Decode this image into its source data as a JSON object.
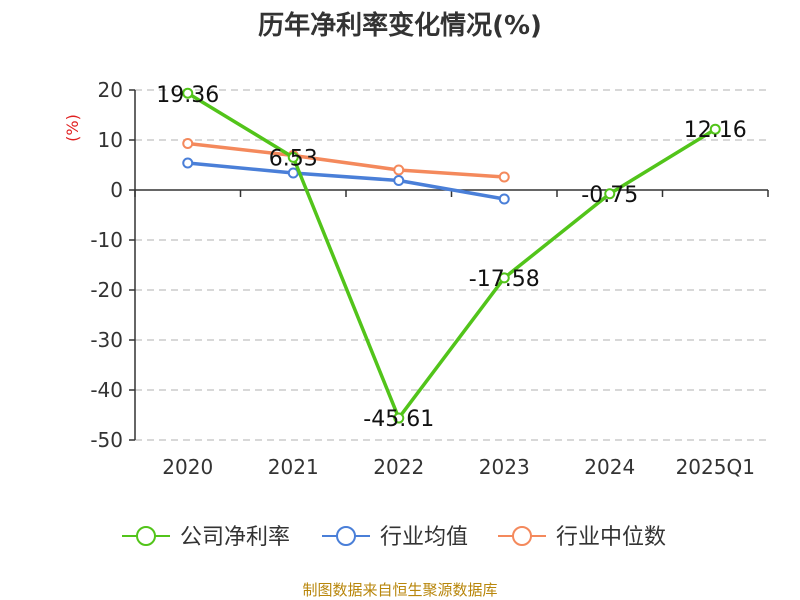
{
  "chart_data": {
    "type": "line",
    "title": "历年净利率变化情况(%)",
    "ylabel": "(%)",
    "xlabel": "",
    "categories": [
      "2020",
      "2021",
      "2022",
      "2023",
      "2024",
      "2025Q1"
    ],
    "ylim": [
      -50,
      20
    ],
    "yticks": [
      20,
      10,
      0,
      -10,
      -20,
      -30,
      -40,
      -50
    ],
    "grid": true,
    "legend_position": "bottom",
    "series": [
      {
        "name": "公司净利率",
        "color": "#52c41a",
        "values": [
          19.36,
          6.53,
          -45.61,
          -17.58,
          -0.75,
          12.16
        ],
        "labels": [
          "19.36",
          "6.53",
          "-45.61",
          "-17.58",
          "-0.75",
          "12.16"
        ]
      },
      {
        "name": "行业均值",
        "color": "#4a7fd8",
        "values": [
          5.4,
          3.4,
          1.9,
          -1.8,
          null,
          null
        ]
      },
      {
        "name": "行业中位数",
        "color": "#f4895c",
        "values": [
          9.3,
          6.9,
          4.0,
          2.6,
          null,
          null
        ]
      }
    ]
  },
  "source": "制图数据来自恒生聚源数据库"
}
